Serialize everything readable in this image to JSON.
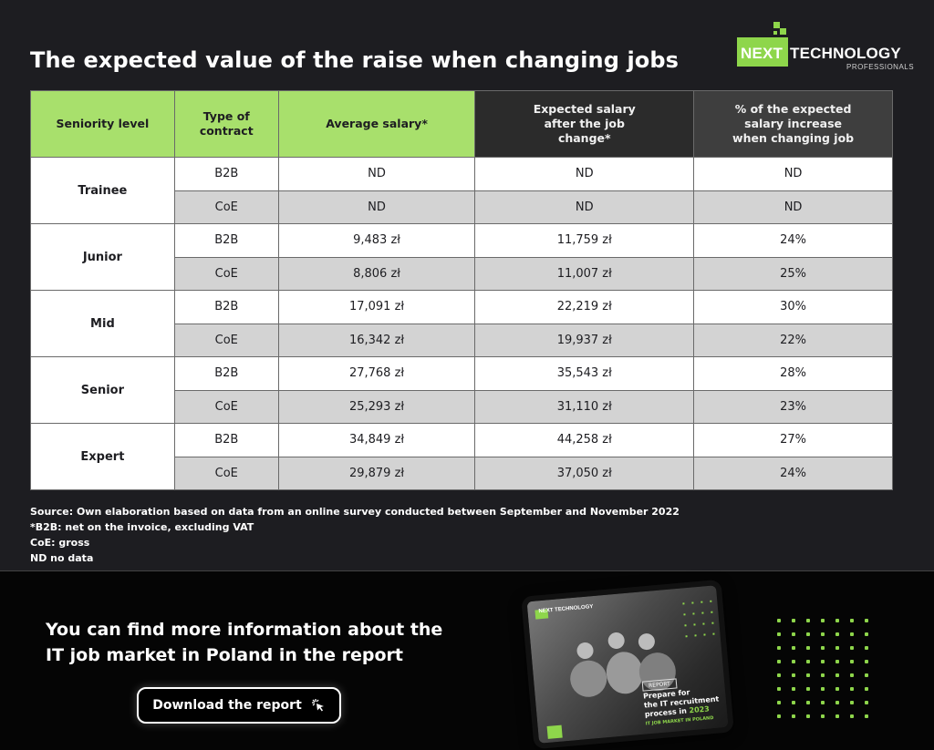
{
  "title": "The expected value of the raise when changing jobs",
  "logo": {
    "next": "NEXT",
    "technology": "TECHNOLOGY",
    "professionals": "PROFESSIONALS",
    "accent": "#8ed64b"
  },
  "table": {
    "headers": {
      "level": "Seniority level",
      "contract": "Type of contract",
      "average": "Average salary*",
      "expected": "Expected salary after the job change*",
      "increase": "% of the expected salary increase when changing job"
    },
    "rows": [
      {
        "level": "Trainee",
        "b2b": {
          "type": "B2B",
          "avg": "ND",
          "exp": "ND",
          "pct": "ND"
        },
        "coe": {
          "type": "CoE",
          "avg": "ND",
          "exp": "ND",
          "pct": "ND"
        }
      },
      {
        "level": "Junior",
        "b2b": {
          "type": "B2B",
          "avg": "9,483 zł",
          "exp": "11,759 zł",
          "pct": "24%"
        },
        "coe": {
          "type": "CoE",
          "avg": "8,806 zł",
          "exp": "11,007 zł",
          "pct": "25%"
        }
      },
      {
        "level": "Mid",
        "b2b": {
          "type": "B2B",
          "avg": "17,091 zł",
          "exp": "22,219 zł",
          "pct": "30%"
        },
        "coe": {
          "type": "CoE",
          "avg": "16,342 zł",
          "exp": "19,937 zł",
          "pct": "22%"
        }
      },
      {
        "level": "Senior",
        "b2b": {
          "type": "B2B",
          "avg": "27,768 zł",
          "exp": "35,543 zł",
          "pct": "28%"
        },
        "coe": {
          "type": "CoE",
          "avg": "25,293 zł",
          "exp": "31,110 zł",
          "pct": "23%"
        }
      },
      {
        "level": "Expert",
        "b2b": {
          "type": "B2B",
          "avg": "34,849 zł",
          "exp": "44,258 zł",
          "pct": "27%"
        },
        "coe": {
          "type": "CoE",
          "avg": "29,879 zł",
          "exp": "37,050 zł",
          "pct": "24%"
        }
      }
    ]
  },
  "notes": {
    "source": "Source: Own elaboration based on data from an online survey conducted between September and November 2022",
    "b2b": "*B2B: net on the invoice, excluding VAT",
    "coe": "CoE: gross",
    "nd": "ND no data"
  },
  "banner": {
    "line1": "You can find more information about the",
    "line2": "IT job market in Poland in the report",
    "button_label": "Download the report",
    "button_icon": "cursor-click-icon",
    "tablet": {
      "logo": "NEXT TECHNOLOGY",
      "tag": "REPORT",
      "title_line1": "Prepare for",
      "title_line2": "the IT recruitment",
      "title_line3": "process in",
      "year": "2023",
      "subtitle": "IT JOB MARKET IN POLAND"
    }
  }
}
